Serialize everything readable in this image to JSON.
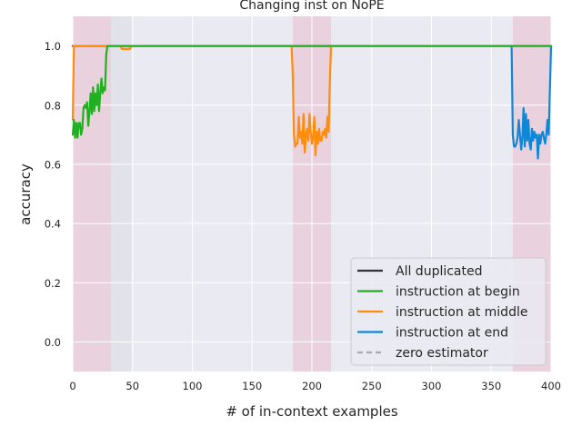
{
  "chart_data": {
    "type": "line",
    "title": "Changing inst on NoPE",
    "xlabel": "# of in-context examples",
    "ylabel": "accuracy",
    "xlim": [
      0,
      400
    ],
    "ylim": [
      -0.1,
      1.1
    ],
    "xticks": [
      "0",
      "50",
      "100",
      "150",
      "200",
      "250",
      "300",
      "350",
      "400"
    ],
    "yticks": [
      "0.0",
      "0.2",
      "0.4",
      "0.6",
      "0.8",
      "1.0"
    ],
    "grid": true,
    "legend_position": "lower-right",
    "shaded_regions": [
      {
        "from": 0,
        "to": 32,
        "color": "#e8b4c4"
      },
      {
        "from": 32,
        "to": 49,
        "color": "#d9dbe0"
      },
      {
        "from": 184,
        "to": 216,
        "color": "#e8b4c4"
      },
      {
        "from": 368,
        "to": 400,
        "color": "#e8b4c4"
      }
    ],
    "series": [
      {
        "name": "All duplicated",
        "color": "#333333",
        "dash": "solid",
        "x": [
          0,
          400
        ],
        "y": [
          1.0,
          1.0
        ]
      },
      {
        "name": "instruction at begin",
        "color": "#22b022",
        "dash": "solid",
        "x": [
          0,
          1,
          2,
          3,
          4,
          5,
          6,
          7,
          8,
          9,
          10,
          11,
          12,
          13,
          14,
          15,
          16,
          17,
          18,
          19,
          20,
          21,
          22,
          23,
          24,
          25,
          26,
          27,
          28,
          29,
          30,
          31,
          32,
          33,
          34,
          35,
          40,
          45,
          48,
          50,
          60,
          100,
          200,
          300,
          400
        ],
        "y": [
          0.7,
          0.75,
          0.69,
          0.74,
          0.69,
          0.74,
          0.74,
          0.7,
          0.72,
          0.79,
          0.8,
          0.79,
          0.81,
          0.73,
          0.78,
          0.84,
          0.77,
          0.86,
          0.78,
          0.84,
          0.8,
          0.87,
          0.78,
          0.84,
          0.89,
          0.84,
          0.86,
          0.85,
          0.97,
          1.0,
          1.0,
          1.0,
          1.0,
          1.0,
          1.0,
          1.0,
          1.0,
          1.0,
          1.0,
          1.0,
          1.0,
          1.0,
          1.0,
          1.0,
          1.0
        ]
      },
      {
        "name": "instruction at middle",
        "color": "#ff8c0a",
        "dash": "solid",
        "x": [
          0,
          1,
          3,
          10,
          30,
          40,
          41,
          42,
          48,
          49,
          50,
          100,
          183,
          184,
          185,
          186,
          187,
          188,
          189,
          190,
          191,
          192,
          193,
          194,
          195,
          196,
          197,
          198,
          199,
          200,
          201,
          202,
          203,
          204,
          205,
          206,
          207,
          208,
          209,
          210,
          211,
          212,
          213,
          214,
          215,
          216,
          220,
          300,
          400
        ],
        "y": [
          0.75,
          1.0,
          1.0,
          1.0,
          1.0,
          1.0,
          0.99,
          0.99,
          0.99,
          1.0,
          1.0,
          1.0,
          1.0,
          0.9,
          0.7,
          0.66,
          0.67,
          0.67,
          0.76,
          0.69,
          0.71,
          0.67,
          0.77,
          0.64,
          0.7,
          0.72,
          0.68,
          0.77,
          0.71,
          0.67,
          0.69,
          0.76,
          0.63,
          0.71,
          0.67,
          0.72,
          0.68,
          0.68,
          0.71,
          0.7,
          0.72,
          0.69,
          0.76,
          0.71,
          0.88,
          1.0,
          1.0,
          1.0,
          1.0
        ]
      },
      {
        "name": "instruction at end",
        "color": "#0f86d6",
        "dash": "solid",
        "x": [
          0,
          100,
          200,
          300,
          367,
          368,
          369,
          370,
          371,
          372,
          373,
          374,
          375,
          376,
          377,
          378,
          379,
          380,
          381,
          382,
          383,
          384,
          385,
          386,
          387,
          388,
          389,
          390,
          391,
          392,
          393,
          394,
          395,
          396,
          397,
          398,
          399,
          400
        ],
        "y": [
          1.0,
          1.0,
          1.0,
          1.0,
          1.0,
          0.7,
          0.66,
          0.66,
          0.67,
          0.69,
          0.75,
          0.7,
          0.65,
          0.69,
          0.79,
          0.66,
          0.77,
          0.68,
          0.75,
          0.67,
          0.65,
          0.72,
          0.68,
          0.71,
          0.69,
          0.7,
          0.62,
          0.7,
          0.67,
          0.7,
          0.71,
          0.69,
          0.67,
          0.7,
          0.75,
          0.7,
          0.85,
          1.0
        ]
      },
      {
        "name": "zero estimator",
        "color": "#aaaaaa",
        "dash": "dashed",
        "x": [],
        "y": []
      }
    ]
  }
}
